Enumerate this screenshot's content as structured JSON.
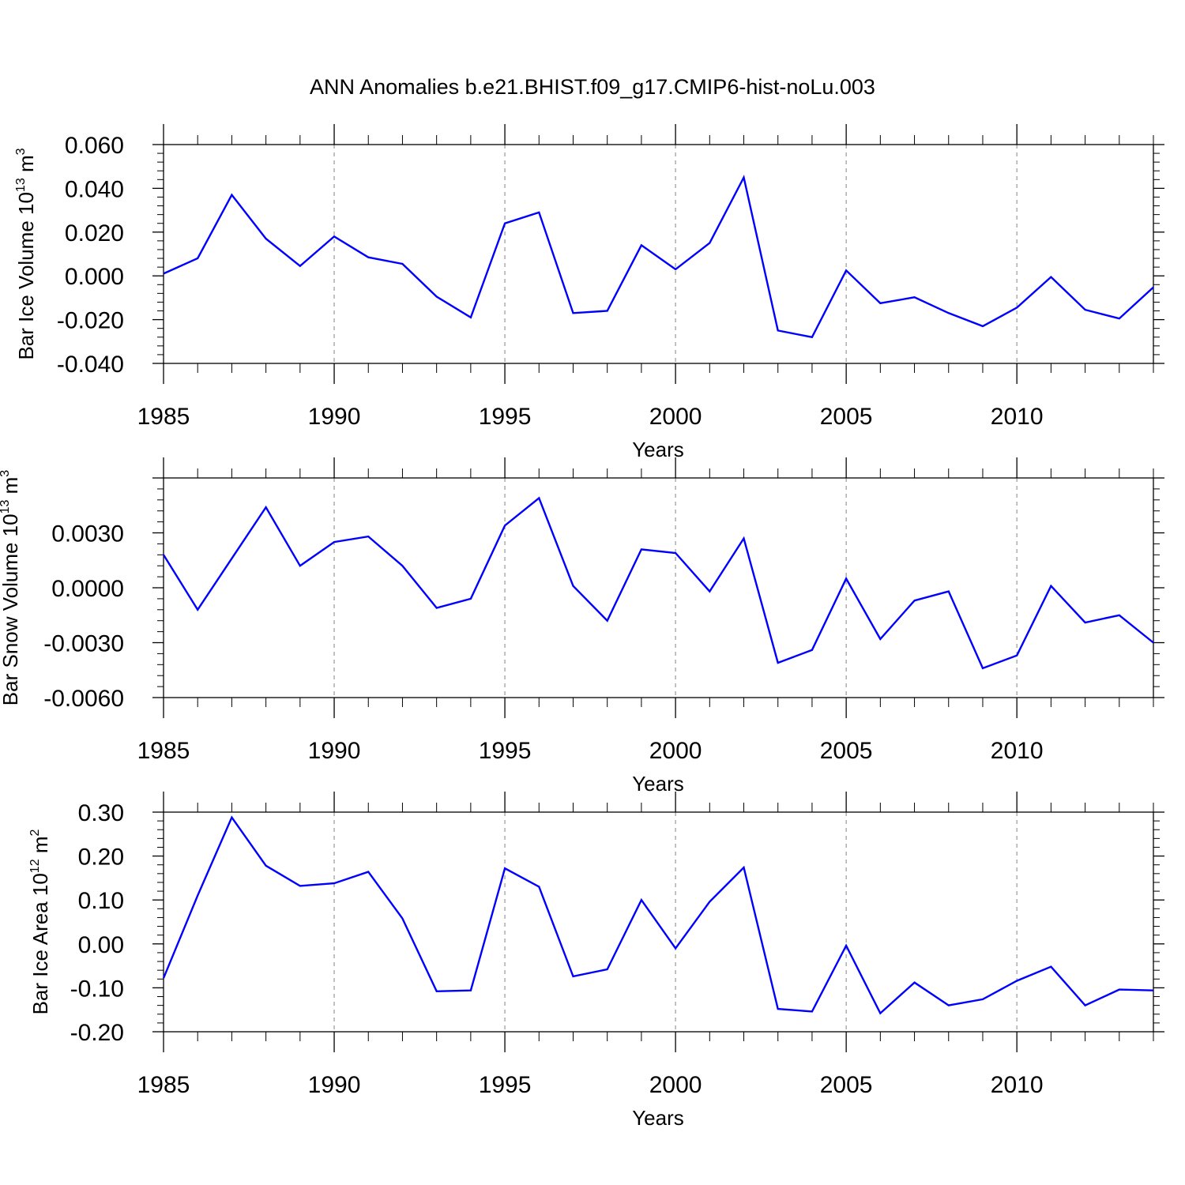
{
  "title": "ANN Anomalies b.e21.BHIST.f09_g17.CMIP6-hist-noLu.003",
  "colors": {
    "line": "#0000ff",
    "axes": "#000000",
    "grid": "#999999"
  },
  "chart_data": [
    {
      "type": "line",
      "ylabel_main": "Bar Ice Volume 10",
      "ylabel_exp": "13",
      "ylabel_unit": "m",
      "ylabel_unit_exp": "3",
      "xlabel": "Years",
      "xlim": [
        1985,
        2014
      ],
      "ylim": [
        -0.04,
        0.06
      ],
      "yticks": [
        -0.04,
        -0.02,
        0.0,
        0.02,
        0.04,
        0.06
      ],
      "ytick_labels": [
        "-0.040",
        "-0.020",
        "0.000",
        "0.020",
        "0.040",
        "0.060"
      ],
      "xticks": [
        1985,
        1990,
        1995,
        2000,
        2005,
        2010
      ],
      "xtick_labels": [
        "1985",
        "1990",
        "1995",
        "2000",
        "2005",
        "2010"
      ],
      "x": [
        1985,
        1986,
        1987,
        1988,
        1989,
        1990,
        1991,
        1992,
        1993,
        1994,
        1995,
        1996,
        1997,
        1998,
        1999,
        2000,
        2001,
        2002,
        2003,
        2004,
        2005,
        2006,
        2007,
        2008,
        2009,
        2010,
        2011,
        2012,
        2013,
        2014
      ],
      "values": [
        0.001,
        0.008,
        0.037,
        0.017,
        0.0045,
        0.018,
        0.0085,
        0.0055,
        -0.0095,
        -0.019,
        0.024,
        0.029,
        -0.017,
        -0.016,
        0.014,
        0.003,
        0.015,
        0.045,
        -0.025,
        -0.028,
        0.0025,
        -0.0125,
        -0.0098,
        -0.017,
        -0.023,
        -0.0145,
        -0.0005,
        -0.0155,
        -0.0195,
        -0.0052
      ]
    },
    {
      "type": "line",
      "ylabel_main": "Bar Snow Volume 10",
      "ylabel_exp": "13",
      "ylabel_unit": "m",
      "ylabel_unit_exp": "3",
      "xlabel": "Years",
      "xlim": [
        1985,
        2014
      ],
      "ylim": [
        -0.006,
        0.006
      ],
      "yticks": [
        -0.006,
        -0.003,
        0.0,
        0.003
      ],
      "ytick_labels": [
        "-0.0060",
        "-0.0030",
        "0.0000",
        "0.0030"
      ],
      "xticks": [
        1985,
        1990,
        1995,
        2000,
        2005,
        2010
      ],
      "xtick_labels": [
        "1985",
        "1990",
        "1995",
        "2000",
        "2005",
        "2010"
      ],
      "x": [
        1985,
        1986,
        1987,
        1988,
        1989,
        1990,
        1991,
        1992,
        1993,
        1994,
        1995,
        1996,
        1997,
        1998,
        1999,
        2000,
        2001,
        2002,
        2003,
        2004,
        2005,
        2006,
        2007,
        2008,
        2009,
        2010,
        2011,
        2012,
        2013,
        2014
      ],
      "values": [
        0.0018,
        -0.0012,
        0.0016,
        0.0044,
        0.0012,
        0.0025,
        0.0028,
        0.0012,
        -0.0011,
        -0.0006,
        0.0034,
        0.0049,
        0.0001,
        -0.0018,
        0.0021,
        0.0019,
        -0.0002,
        0.0027,
        -0.0041,
        -0.0034,
        0.0005,
        -0.0028,
        -0.0007,
        -0.0002,
        -0.0044,
        -0.0037,
        0.0001,
        -0.0019,
        -0.0015,
        -0.003
      ]
    },
    {
      "type": "line",
      "ylabel_main": "Bar Ice Area 10",
      "ylabel_exp": "12",
      "ylabel_unit": "m",
      "ylabel_unit_exp": "2",
      "xlabel": "Years",
      "xlim": [
        1985,
        2014
      ],
      "ylim": [
        -0.2,
        0.3
      ],
      "yticks": [
        -0.2,
        -0.1,
        0.0,
        0.1,
        0.2,
        0.3
      ],
      "ytick_labels": [
        "-0.20",
        "-0.10",
        "0.00",
        "0.10",
        "0.20",
        "0.30"
      ],
      "xticks": [
        1985,
        1990,
        1995,
        2000,
        2005,
        2010
      ],
      "xtick_labels": [
        "1985",
        "1990",
        "1995",
        "2000",
        "2005",
        "2010"
      ],
      "x": [
        1985,
        1986,
        1987,
        1988,
        1989,
        1990,
        1991,
        1992,
        1993,
        1994,
        1995,
        1996,
        1997,
        1998,
        1999,
        2000,
        2001,
        2002,
        2003,
        2004,
        2005,
        2006,
        2007,
        2008,
        2009,
        2010,
        2011,
        2012,
        2013,
        2014
      ],
      "values": [
        -0.078,
        0.11,
        0.288,
        0.178,
        0.132,
        0.138,
        0.164,
        0.058,
        -0.108,
        -0.106,
        0.172,
        0.13,
        -0.074,
        -0.058,
        0.1,
        -0.01,
        0.096,
        0.174,
        -0.148,
        -0.154,
        -0.004,
        -0.158,
        -0.088,
        -0.14,
        -0.126,
        -0.084,
        -0.052,
        -0.14,
        -0.104,
        -0.106
      ]
    }
  ]
}
